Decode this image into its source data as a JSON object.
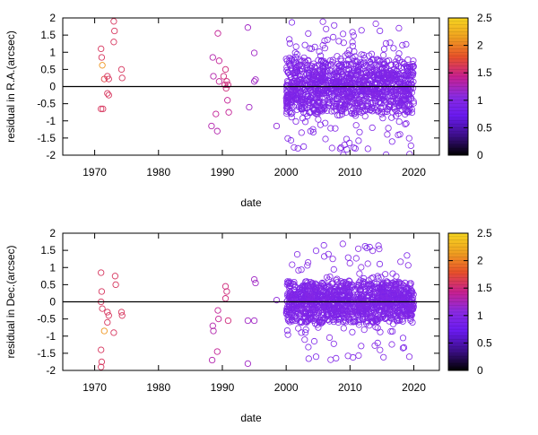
{
  "chart_data": [
    {
      "type": "scatter",
      "ylabel": "residual in R.A.(arcsec)",
      "xlabel": "date",
      "xlim": [
        1965,
        2024
      ],
      "ylim": [
        -2,
        2
      ],
      "xticks": [
        1970,
        1980,
        1990,
        2000,
        2010,
        2020
      ],
      "yticks": [
        -2,
        -1.5,
        -1,
        -0.5,
        0,
        0.5,
        1,
        1.5,
        2
      ],
      "zero_line": true,
      "marker": "open circle",
      "points": [
        {
          "x": 1971.0,
          "y": 1.1,
          "c": 1.6
        },
        {
          "x": 1971.1,
          "y": 0.85,
          "c": 1.6
        },
        {
          "x": 1971.2,
          "y": 0.62,
          "c": 2.1
        },
        {
          "x": 1971.0,
          "y": -0.65,
          "c": 1.6
        },
        {
          "x": 1971.3,
          "y": -0.65,
          "c": 1.6
        },
        {
          "x": 1971.5,
          "y": 0.22,
          "c": 1.7
        },
        {
          "x": 1972.0,
          "y": 0.3,
          "c": 1.6
        },
        {
          "x": 1972.2,
          "y": 0.22,
          "c": 1.6
        },
        {
          "x": 1972.0,
          "y": -0.2,
          "c": 1.6
        },
        {
          "x": 1972.2,
          "y": -0.25,
          "c": 1.6
        },
        {
          "x": 1973.0,
          "y": 1.9,
          "c": 1.6
        },
        {
          "x": 1973.1,
          "y": 1.62,
          "c": 1.6
        },
        {
          "x": 1973.0,
          "y": 1.3,
          "c": 1.6
        },
        {
          "x": 1974.2,
          "y": 0.5,
          "c": 1.6
        },
        {
          "x": 1974.3,
          "y": 0.25,
          "c": 1.6
        },
        {
          "x": 1988.5,
          "y": 0.85,
          "c": 1.3
        },
        {
          "x": 1988.6,
          "y": 0.3,
          "c": 1.3
        },
        {
          "x": 1989.3,
          "y": 1.55,
          "c": 1.4
        },
        {
          "x": 1989.5,
          "y": 0.75,
          "c": 1.4
        },
        {
          "x": 1989.5,
          "y": 0.15,
          "c": 1.4
        },
        {
          "x": 1990.2,
          "y": 0.3,
          "c": 1.5
        },
        {
          "x": 1990.5,
          "y": 0.5,
          "c": 1.5
        },
        {
          "x": 1990.7,
          "y": 0.15,
          "c": 1.5
        },
        {
          "x": 1990.9,
          "y": 0.05,
          "c": 1.5
        },
        {
          "x": 1990.6,
          "y": -0.05,
          "c": 1.5
        },
        {
          "x": 1989.0,
          "y": -0.8,
          "c": 1.4
        },
        {
          "x": 1988.3,
          "y": -1.15,
          "c": 1.3
        },
        {
          "x": 1989.2,
          "y": -1.3,
          "c": 1.3
        },
        {
          "x": 1990.8,
          "y": -0.4,
          "c": 1.4
        },
        {
          "x": 1991.0,
          "y": -0.75,
          "c": 1.4
        },
        {
          "x": 1990.4,
          "y": 0.05,
          "c": 1.5
        },
        {
          "x": 1994.0,
          "y": 1.72,
          "c": 1.2
        },
        {
          "x": 1994.2,
          "y": -0.6,
          "c": 1.2
        },
        {
          "x": 1995.0,
          "y": 0.15,
          "c": 1.2
        },
        {
          "x": 1995.2,
          "y": 0.2,
          "c": 1.2
        },
        {
          "x": 1995.0,
          "y": 0.98,
          "c": 1.2
        },
        {
          "x": 1998.5,
          "y": -1.15,
          "c": 1.1
        }
      ],
      "dense_regions": [
        {
          "x_from": 2000,
          "x_to": 2020,
          "y_core": [
            -0.8,
            0.8
          ],
          "y_extreme": [
            -2.0,
            1.95
          ],
          "c": 0.95,
          "spread": "wide"
        }
      ]
    },
    {
      "type": "scatter",
      "ylabel": "residual in Dec.(arcsec)",
      "xlabel": "date",
      "xlim": [
        1965,
        2024
      ],
      "ylim": [
        -2,
        2
      ],
      "xticks": [
        1970,
        1980,
        1990,
        2000,
        2010,
        2020
      ],
      "yticks": [
        -2,
        -1.5,
        -1,
        -0.5,
        0,
        0.5,
        1,
        1.5,
        2
      ],
      "zero_line": true,
      "marker": "open circle",
      "points": [
        {
          "x": 1971.0,
          "y": 0.85,
          "c": 1.6
        },
        {
          "x": 1971.1,
          "y": 0.3,
          "c": 1.6
        },
        {
          "x": 1971.0,
          "y": 0.0,
          "c": 1.6
        },
        {
          "x": 1971.2,
          "y": -0.2,
          "c": 1.6
        },
        {
          "x": 1971.5,
          "y": -0.85,
          "c": 2.1
        },
        {
          "x": 1971.0,
          "y": -1.4,
          "c": 1.6
        },
        {
          "x": 1971.1,
          "y": -1.75,
          "c": 1.6
        },
        {
          "x": 1971.0,
          "y": -1.9,
          "c": 1.6
        },
        {
          "x": 1972.0,
          "y": -0.3,
          "c": 1.6
        },
        {
          "x": 1972.2,
          "y": -0.4,
          "c": 1.6
        },
        {
          "x": 1972.0,
          "y": -0.6,
          "c": 1.6
        },
        {
          "x": 1973.2,
          "y": 0.75,
          "c": 1.6
        },
        {
          "x": 1973.3,
          "y": 0.5,
          "c": 1.6
        },
        {
          "x": 1973.0,
          "y": -0.9,
          "c": 1.6
        },
        {
          "x": 1974.2,
          "y": -0.3,
          "c": 1.6
        },
        {
          "x": 1974.3,
          "y": -0.4,
          "c": 1.6
        },
        {
          "x": 1988.5,
          "y": -0.7,
          "c": 1.3
        },
        {
          "x": 1988.6,
          "y": -0.85,
          "c": 1.3
        },
        {
          "x": 1988.4,
          "y": -1.7,
          "c": 1.3
        },
        {
          "x": 1989.3,
          "y": -0.25,
          "c": 1.4
        },
        {
          "x": 1989.4,
          "y": -0.5,
          "c": 1.4
        },
        {
          "x": 1989.2,
          "y": -1.45,
          "c": 1.4
        },
        {
          "x": 1990.5,
          "y": 0.45,
          "c": 1.5
        },
        {
          "x": 1990.7,
          "y": 0.3,
          "c": 1.5
        },
        {
          "x": 1990.9,
          "y": -0.55,
          "c": 1.5
        },
        {
          "x": 1990.5,
          "y": 0.1,
          "c": 1.5
        },
        {
          "x": 1994.0,
          "y": -0.55,
          "c": 1.2
        },
        {
          "x": 1994.0,
          "y": -1.8,
          "c": 1.2
        },
        {
          "x": 1995.0,
          "y": 0.65,
          "c": 1.2
        },
        {
          "x": 1995.2,
          "y": 0.55,
          "c": 1.2
        },
        {
          "x": 1995.0,
          "y": -0.55,
          "c": 1.2
        },
        {
          "x": 1998.5,
          "y": 0.05,
          "c": 1.1
        }
      ],
      "dense_regions": [
        {
          "x_from": 2000,
          "x_to": 2020,
          "y_core": [
            -0.6,
            0.6
          ],
          "y_extreme": [
            -1.7,
            1.7
          ],
          "c": 0.95,
          "spread": "wide"
        }
      ]
    }
  ],
  "colorbar": {
    "min": 0,
    "max": 2.5,
    "ticks": [
      0,
      0.5,
      1,
      1.5,
      2,
      2.5
    ],
    "colors": [
      "#000000",
      "#3d0f8a",
      "#6a1af0",
      "#8a2be2",
      "#c8208f",
      "#e8502a",
      "#f0a020",
      "#f6d520"
    ]
  },
  "zero_line_color": "#000000"
}
